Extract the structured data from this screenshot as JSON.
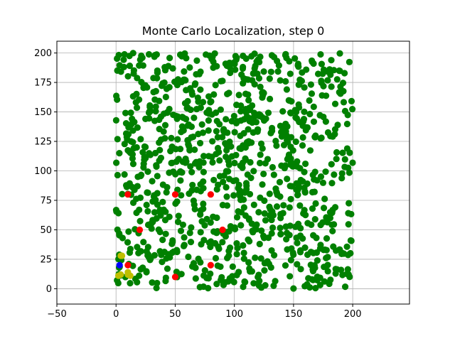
{
  "chart_data": {
    "type": "scatter",
    "title": "Monte Carlo Localization, step 0",
    "xlabel": "",
    "ylabel": "",
    "xlim": [
      -50,
      248
    ],
    "ylim": [
      -13,
      210
    ],
    "xticks": [
      -50,
      0,
      50,
      100,
      150,
      200
    ],
    "yticks": [
      0,
      25,
      50,
      75,
      100,
      125,
      150,
      175,
      200
    ],
    "grid": true,
    "particle_count": 1000,
    "particle_seed": 7,
    "series": [
      {
        "kind": "particles",
        "color": "#008000",
        "x_range": [
          0,
          200
        ],
        "y_range": [
          0,
          200
        ]
      },
      {
        "kind": "landmarks",
        "color": "#ff0000",
        "points": [
          [
            20,
            50
          ],
          [
            50,
            80
          ],
          [
            50,
            10
          ],
          [
            80,
            80
          ],
          [
            90,
            50
          ],
          [
            10,
            80
          ],
          [
            80,
            20
          ],
          [
            10,
            20
          ]
        ]
      },
      {
        "kind": "estimates",
        "color": "#bfbf00",
        "points": [
          [
            2,
            11
          ],
          [
            4,
            12
          ],
          [
            10,
            12
          ],
          [
            12,
            11
          ],
          [
            10,
            14
          ],
          [
            5,
            28
          ],
          [
            4,
            28
          ]
        ]
      },
      {
        "kind": "robot",
        "color": "#0000ff",
        "points": [
          [
            3,
            20
          ]
        ]
      }
    ]
  }
}
